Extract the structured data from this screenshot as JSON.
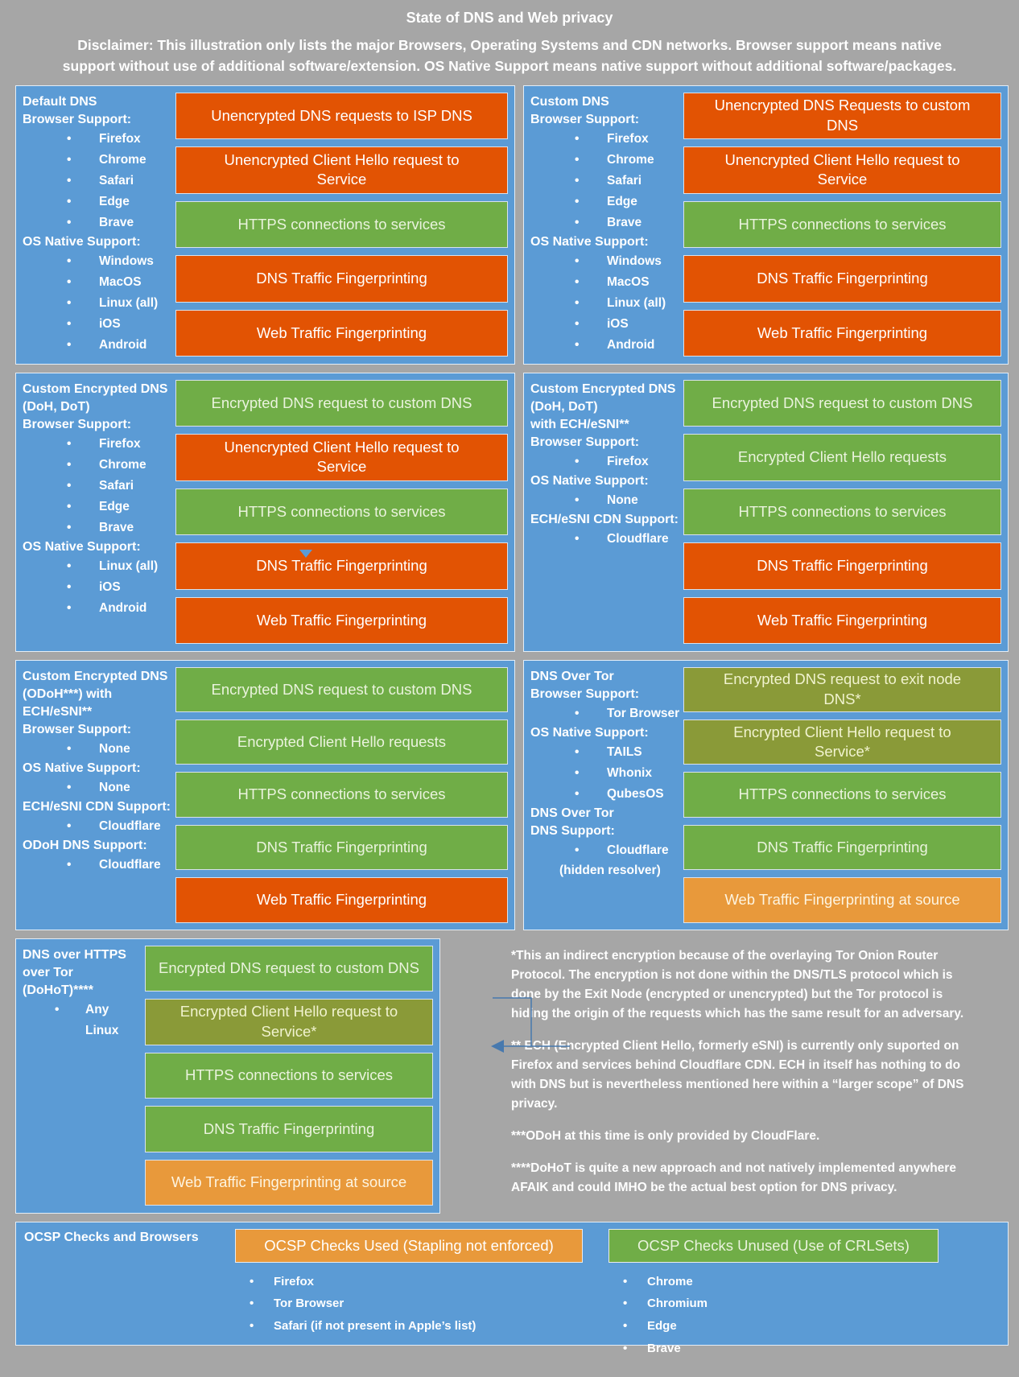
{
  "header": {
    "title": "State of DNS and Web privacy",
    "disclaimer": "Disclaimer: This illustration only lists the major Browsers, Operating Systems and CDN networks. Browser support means native support without use of additional software/extension. OS Native Support means native support without additional software/packages."
  },
  "colors": {
    "page_background": "#a6a6a6",
    "panel_blue": "#5b9bd5",
    "bad_red_orange": "#e25303",
    "good_green": "#70ad47",
    "partial_olive": "#8a9a38",
    "warning_amber": "#e8993b",
    "text_white": "#ffffff"
  },
  "panels": [
    {
      "id": "default-dns",
      "left": [
        {
          "type": "title",
          "text": "Default DNS"
        },
        {
          "type": "title",
          "text": "Browser Support:"
        },
        {
          "type": "bullet",
          "text": "Firefox"
        },
        {
          "type": "bullet",
          "text": "Chrome"
        },
        {
          "type": "bullet",
          "text": "Safari"
        },
        {
          "type": "bullet",
          "text": "Edge"
        },
        {
          "type": "bullet",
          "text": "Brave"
        },
        {
          "type": "title",
          "text": "OS Native Support:"
        },
        {
          "type": "bullet",
          "text": "Windows"
        },
        {
          "type": "bullet",
          "text": "MacOS"
        },
        {
          "type": "bullet",
          "text": "Linux (all)"
        },
        {
          "type": "bullet",
          "text": "iOS"
        },
        {
          "type": "bullet",
          "text": "Android"
        }
      ],
      "bars": [
        {
          "color": "red",
          "text": "Unencrypted DNS requests to ISP DNS"
        },
        {
          "color": "red",
          "text": "Unencrypted Client Hello request to Service"
        },
        {
          "color": "green",
          "text": "HTTPS connections to services"
        },
        {
          "color": "red",
          "text": "DNS Traffic Fingerprinting"
        },
        {
          "color": "red",
          "text": "Web Traffic Fingerprinting"
        }
      ]
    },
    {
      "id": "custom-dns",
      "left": [
        {
          "type": "title",
          "text": "Custom DNS"
        },
        {
          "type": "title",
          "text": "Browser Support:"
        },
        {
          "type": "bullet",
          "text": "Firefox"
        },
        {
          "type": "bullet",
          "text": "Chrome"
        },
        {
          "type": "bullet",
          "text": "Safari"
        },
        {
          "type": "bullet",
          "text": "Edge"
        },
        {
          "type": "bullet",
          "text": "Brave"
        },
        {
          "type": "title",
          "text": "OS Native Support:"
        },
        {
          "type": "bullet",
          "text": "Windows"
        },
        {
          "type": "bullet",
          "text": "MacOS"
        },
        {
          "type": "bullet",
          "text": "Linux (all)"
        },
        {
          "type": "bullet",
          "text": "iOS"
        },
        {
          "type": "bullet",
          "text": "Android"
        }
      ],
      "bars": [
        {
          "color": "red",
          "text": "Unencrypted DNS Requests to custom DNS"
        },
        {
          "color": "red",
          "text": "Unencrypted Client Hello request to Service"
        },
        {
          "color": "green",
          "text": "HTTPS connections to services"
        },
        {
          "color": "red",
          "text": "DNS Traffic Fingerprinting"
        },
        {
          "color": "red",
          "text": "Web Traffic Fingerprinting"
        }
      ]
    },
    {
      "id": "custom-encrypted-dns",
      "left": [
        {
          "type": "title",
          "text": "Custom Encrypted DNS"
        },
        {
          "type": "title",
          "text": "(DoH, DoT)"
        },
        {
          "type": "title",
          "text": "Browser Support:"
        },
        {
          "type": "bullet",
          "text": "Firefox"
        },
        {
          "type": "bullet",
          "text": "Chrome"
        },
        {
          "type": "bullet",
          "text": "Safari"
        },
        {
          "type": "bullet",
          "text": "Edge"
        },
        {
          "type": "bullet",
          "text": "Brave"
        },
        {
          "type": "title",
          "text": "OS Native Support:"
        },
        {
          "type": "bullet",
          "text": "Linux (all)"
        },
        {
          "type": "bullet",
          "text": "iOS"
        },
        {
          "type": "bullet",
          "text": "Android"
        }
      ],
      "bars": [
        {
          "color": "green",
          "text": "Encrypted DNS request to custom DNS"
        },
        {
          "color": "red",
          "text": "Unencrypted Client Hello request to Service"
        },
        {
          "color": "green",
          "text": "HTTPS connections to services"
        },
        {
          "color": "red",
          "text": "DNS Traffic Fingerprinting"
        },
        {
          "color": "red",
          "text": "Web Traffic Fingerprinting"
        }
      ]
    },
    {
      "id": "custom-encrypted-dns-ech",
      "left": [
        {
          "type": "title",
          "text": "Custom Encrypted DNS"
        },
        {
          "type": "title",
          "text": "(DoH, DoT)"
        },
        {
          "type": "title",
          "text": "with ECH/eSNI**"
        },
        {
          "type": "title",
          "text": "Browser Support:"
        },
        {
          "type": "bullet",
          "text": "Firefox"
        },
        {
          "type": "title",
          "text": "OS Native Support:"
        },
        {
          "type": "bullet",
          "text": "None"
        },
        {
          "type": "title",
          "text": "ECH/eSNI CDN Support:"
        },
        {
          "type": "bullet",
          "text": "Cloudflare"
        }
      ],
      "bars": [
        {
          "color": "green",
          "text": "Encrypted DNS request to custom DNS"
        },
        {
          "color": "green",
          "text": "Encrypted Client Hello requests"
        },
        {
          "color": "green",
          "text": "HTTPS connections to services"
        },
        {
          "color": "red",
          "text": "DNS Traffic Fingerprinting"
        },
        {
          "color": "red",
          "text": "Web Traffic Fingerprinting"
        }
      ]
    },
    {
      "id": "odoh-ech",
      "left": [
        {
          "type": "title",
          "text": "Custom Encrypted DNS"
        },
        {
          "type": "title",
          "text": "(ODoH***) with"
        },
        {
          "type": "title",
          "text": "ECH/eSNI**"
        },
        {
          "type": "title",
          "text": "Browser Support:"
        },
        {
          "type": "bullet",
          "text": "None"
        },
        {
          "type": "title",
          "text": "OS Native Support:"
        },
        {
          "type": "bullet",
          "text": "None"
        },
        {
          "type": "title",
          "text": "ECH/eSNI CDN Support:"
        },
        {
          "type": "bullet",
          "text": "Cloudflare"
        },
        {
          "type": "title",
          "text": "ODoH DNS Support:"
        },
        {
          "type": "bullet",
          "text": "Cloudflare"
        }
      ],
      "bars": [
        {
          "color": "green",
          "text": "Encrypted DNS request to custom DNS"
        },
        {
          "color": "green",
          "text": "Encrypted Client Hello requests"
        },
        {
          "color": "green",
          "text": "HTTPS connections to services"
        },
        {
          "color": "green",
          "text": "DNS Traffic Fingerprinting"
        },
        {
          "color": "red",
          "text": "Web Traffic Fingerprinting"
        }
      ]
    },
    {
      "id": "dns-over-tor",
      "left": [
        {
          "type": "title",
          "text": "DNS Over Tor"
        },
        {
          "type": "title",
          "text": "Browser Support:"
        },
        {
          "type": "bullet",
          "text": "Tor Browser"
        },
        {
          "type": "title",
          "text": "OS Native Support:"
        },
        {
          "type": "bullet",
          "text": "TAILS"
        },
        {
          "type": "bullet",
          "text": "Whonix"
        },
        {
          "type": "bullet",
          "text": "QubesOS"
        },
        {
          "type": "title",
          "text": "DNS Over Tor"
        },
        {
          "type": "title",
          "text": "DNS Support:"
        },
        {
          "type": "bullet",
          "text": "Cloudflare"
        },
        {
          "type": "sub",
          "text": "(hidden resolver)"
        }
      ],
      "bars": [
        {
          "color": "olive",
          "text": "Encrypted DNS request to exit node DNS*"
        },
        {
          "color": "olive",
          "text": "Encrypted Client Hello request to Service*"
        },
        {
          "color": "green",
          "text": "HTTPS connections to services"
        },
        {
          "color": "green",
          "text": "DNS Traffic Fingerprinting"
        },
        {
          "color": "amber",
          "text": "Web Traffic Fingerprinting at source"
        }
      ]
    },
    {
      "id": "dohot",
      "slot": "row4-slot",
      "narrow": true,
      "left": [
        {
          "type": "title",
          "text": "DNS over HTTPS over Tor"
        },
        {
          "type": "title",
          "text": "(DoHoT)****"
        },
        {
          "type": "bullet",
          "text": "Any Linux"
        }
      ],
      "bars": [
        {
          "color": "green",
          "text": "Encrypted DNS request to custom DNS"
        },
        {
          "color": "olive",
          "text": "Encrypted Client Hello request to Service*"
        },
        {
          "color": "green",
          "text": "HTTPS connections to services"
        },
        {
          "color": "green",
          "text": "DNS Traffic Fingerprinting"
        },
        {
          "color": "amber",
          "text": "Web Traffic Fingerprinting at source"
        }
      ]
    }
  ],
  "notes": [
    "*This an indirect encryption because of the overlaying Tor Onion Router Protocol. The encryption is not done within the DNS/TLS protocol which is done by the Exit Node (encrypted or unencrypted) but the Tor protocol is hiding the origin of the requests which has the same result for an adversary.",
    "** ECH (Encrypted Client Hello, formerly eSNI) is currently only suported on Firefox and services behind Cloudflare CDN. ECH in itself has nothing to do with DNS but is nevertheless mentioned here within a “larger scope” of DNS privacy.",
    "***ODoH at this time is only provided by CloudFlare.",
    "****DoHoT is quite a new approach and not natively implemented anywhere AFAIK and could IMHO be the actual best option for DNS privacy."
  ],
  "ocsp": {
    "title": "OCSP Checks and Browsers",
    "used": {
      "label": "OCSP Checks Used (Stapling not enforced)",
      "items": [
        "Firefox",
        "Tor Browser",
        "Safari (if not present in Apple’s list)"
      ]
    },
    "unused": {
      "label": "OCSP Checks Unused (Use of CRLSets)",
      "items": [
        "Chrome",
        "Chromium",
        "Edge",
        "Brave"
      ]
    }
  }
}
